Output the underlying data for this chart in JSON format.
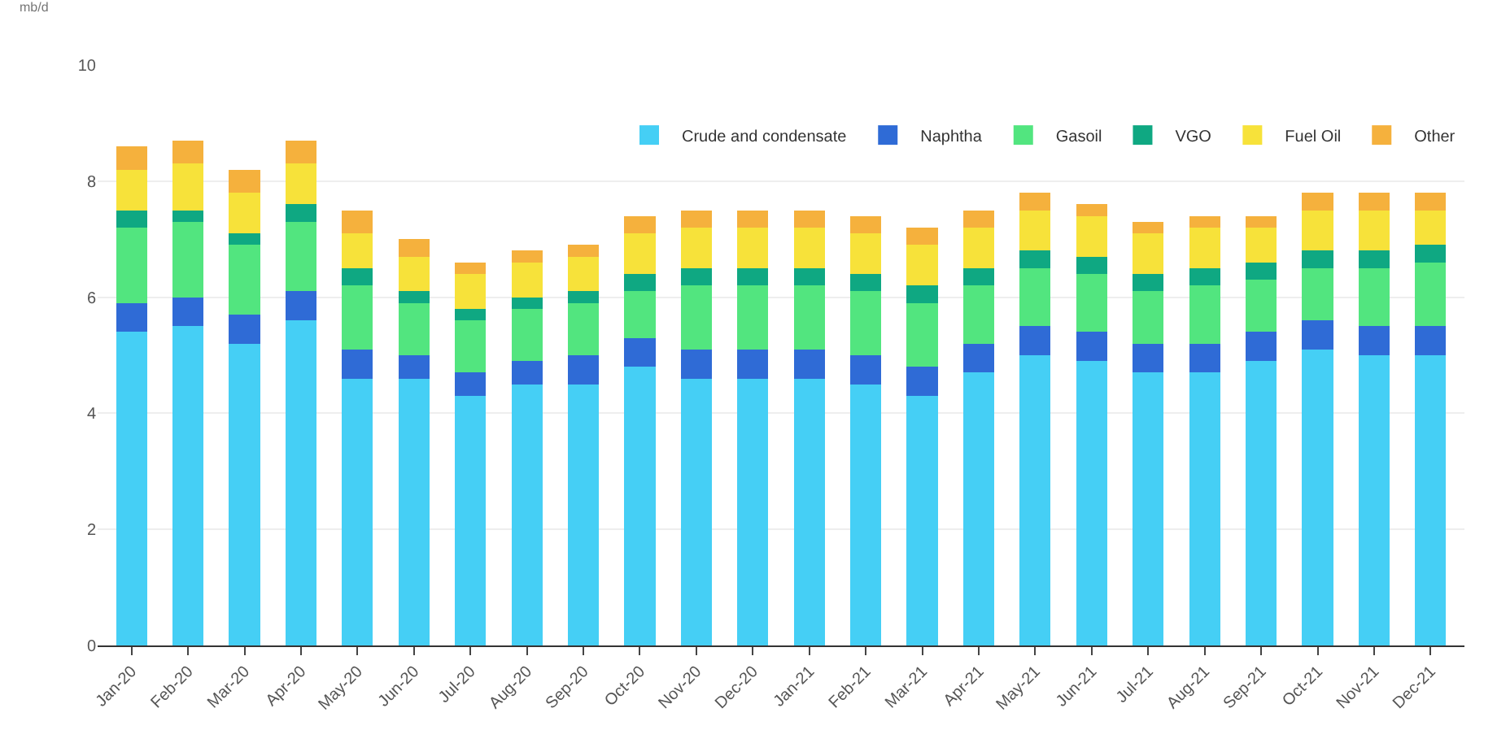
{
  "chart_data": {
    "type": "bar",
    "stacked": true,
    "ylabel": "mb/d",
    "categories": [
      "Jan-20",
      "Feb-20",
      "Mar-20",
      "Apr-20",
      "May-20",
      "Jun-20",
      "Jul-20",
      "Aug-20",
      "Sep-20",
      "Oct-20",
      "Nov-20",
      "Dec-20",
      "Jan-21",
      "Feb-21",
      "Mar-21",
      "Apr-21",
      "May-21",
      "Jun-21",
      "Jul-21",
      "Aug-21",
      "Sep-21",
      "Oct-21",
      "Nov-21",
      "Dec-21"
    ],
    "series": [
      {
        "name": "Crude and condensate",
        "color": "#45cff5",
        "values": [
          5.4,
          5.5,
          5.2,
          5.6,
          4.6,
          4.6,
          4.3,
          4.5,
          4.5,
          4.8,
          4.6,
          4.6,
          4.6,
          4.5,
          4.3,
          4.7,
          5.0,
          4.9,
          4.7,
          4.7,
          4.9,
          5.1,
          5.0,
          5.0
        ]
      },
      {
        "name": "Naphtha",
        "color": "#2f6bd6",
        "values": [
          0.5,
          0.5,
          0.5,
          0.5,
          0.5,
          0.4,
          0.4,
          0.4,
          0.5,
          0.5,
          0.5,
          0.5,
          0.5,
          0.5,
          0.5,
          0.5,
          0.5,
          0.5,
          0.5,
          0.5,
          0.5,
          0.5,
          0.5,
          0.5
        ]
      },
      {
        "name": "Gasoil",
        "color": "#52e57f",
        "values": [
          1.3,
          1.3,
          1.2,
          1.2,
          1.1,
          0.9,
          0.9,
          0.9,
          0.9,
          0.8,
          1.1,
          1.1,
          1.1,
          1.1,
          1.1,
          1.0,
          1.0,
          1.0,
          0.9,
          1.0,
          0.9,
          0.9,
          1.0,
          1.1
        ]
      },
      {
        "name": "VGO",
        "color": "#0fa882",
        "values": [
          0.3,
          0.2,
          0.2,
          0.3,
          0.3,
          0.2,
          0.2,
          0.2,
          0.2,
          0.3,
          0.3,
          0.3,
          0.3,
          0.3,
          0.3,
          0.3,
          0.3,
          0.3,
          0.3,
          0.3,
          0.3,
          0.3,
          0.3,
          0.3
        ]
      },
      {
        "name": "Fuel Oil",
        "color": "#f7e23a",
        "values": [
          0.7,
          0.8,
          0.7,
          0.7,
          0.6,
          0.6,
          0.6,
          0.6,
          0.6,
          0.7,
          0.7,
          0.7,
          0.7,
          0.7,
          0.7,
          0.7,
          0.7,
          0.7,
          0.7,
          0.7,
          0.6,
          0.7,
          0.7,
          0.6
        ]
      },
      {
        "name": "Other",
        "color": "#f5b13d",
        "values": [
          0.4,
          0.4,
          0.4,
          0.4,
          0.4,
          0.3,
          0.2,
          0.2,
          0.2,
          0.3,
          0.3,
          0.3,
          0.3,
          0.3,
          0.3,
          0.3,
          0.3,
          0.2,
          0.2,
          0.2,
          0.2,
          0.3,
          0.3,
          0.3
        ]
      }
    ],
    "ylim": [
      0,
      10
    ],
    "yticks": [
      0,
      2,
      4,
      6,
      8,
      10
    ],
    "grid": "y",
    "legend": "top right"
  }
}
